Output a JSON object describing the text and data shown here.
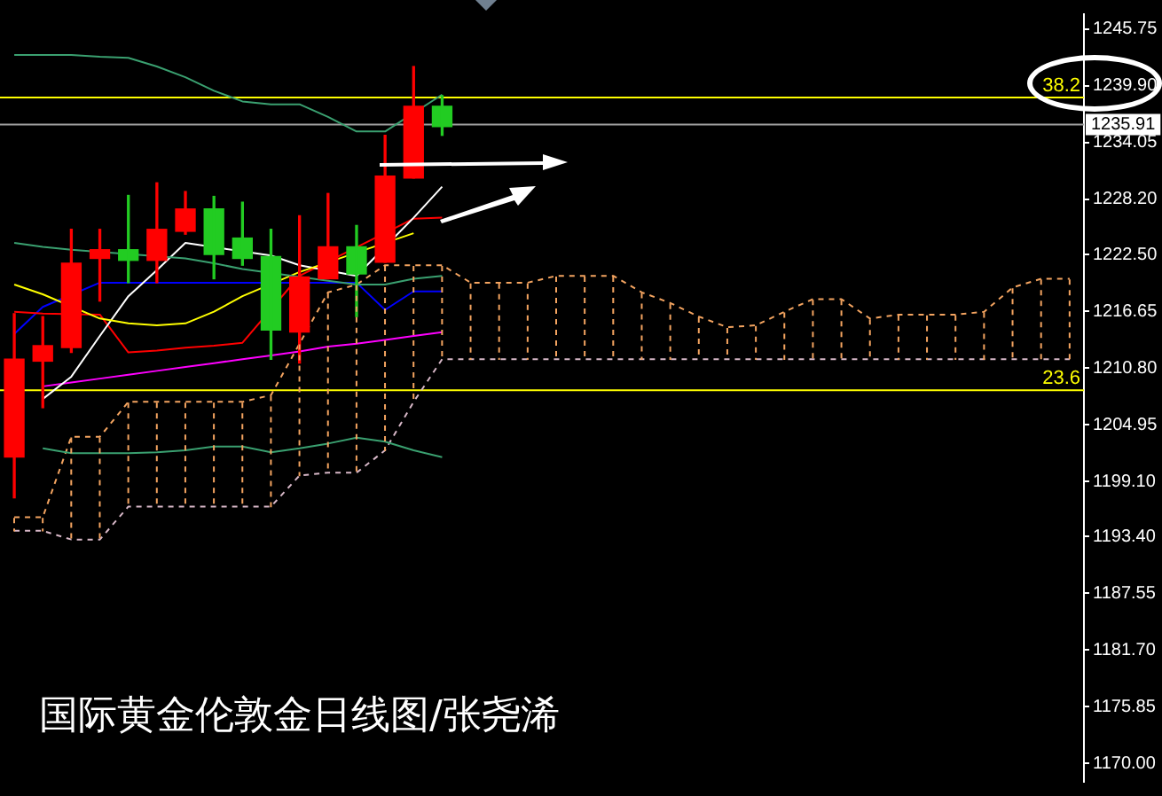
{
  "chart_data": {
    "type": "candlestick",
    "title": "国际黄金伦敦金日线图/张尧浠",
    "categories": [
      null,
      null,
      null,
      null,
      null,
      null,
      null,
      null,
      null,
      null,
      null,
      null,
      null,
      null,
      null,
      null,
      null,
      null,
      null,
      null,
      null,
      null,
      null,
      null,
      null,
      null,
      null,
      null,
      null,
      null,
      null,
      null,
      null,
      null,
      null,
      null,
      null,
      null
    ],
    "ohlc": [
      [
        1201.6,
        1216.4,
        1197.4,
        1211.7
      ],
      [
        1211.5,
        1216.1,
        1206.7,
        1213.1
      ],
      [
        1212.9,
        1225.1,
        1212.4,
        1221.6
      ],
      [
        1222.1,
        1225.1,
        1217.7,
        1223.0
      ],
      [
        1223.0,
        1228.6,
        1219.6,
        1221.9
      ],
      [
        1221.9,
        1229.9,
        1219.6,
        1225.1
      ],
      [
        1224.9,
        1229.0,
        1224.6,
        1227.2
      ],
      [
        1227.2,
        1228.5,
        1220.0,
        1222.5
      ],
      [
        1224.2,
        1227.9,
        1221.4,
        1222.1
      ],
      [
        1222.3,
        1225.1,
        1211.7,
        1214.7
      ],
      [
        1214.5,
        1226.5,
        1211.3,
        1220.2
      ],
      [
        1220.0,
        1228.8,
        1220.0,
        1223.3
      ],
      [
        1223.3,
        1225.5,
        1216.1,
        1220.5
      ],
      [
        1221.7,
        1234.8,
        1221.7,
        1230.6
      ],
      [
        1230.4,
        1241.9,
        1230.4,
        1237.8
      ],
      [
        1237.8,
        1238.9,
        1234.8,
        1235.7
      ],
      null,
      null,
      null,
      null,
      null,
      null,
      null,
      null,
      null,
      null,
      null,
      null,
      null,
      null,
      null,
      null,
      null,
      null,
      null,
      null,
      null,
      null
    ],
    "colors": [
      "#ff0000",
      "#ff0000",
      "#ff0000",
      "#ff0000",
      "#22cc22",
      "#ff0000",
      "#ff0000",
      "#22cc22",
      "#22cc22",
      "#22cc22",
      "#ff0000",
      "#ff0000",
      "#22cc22",
      "#ff0000",
      "#ff0000",
      "#22cc22",
      null,
      null,
      null,
      null,
      null,
      null,
      null,
      null,
      null,
      null,
      null,
      null,
      null,
      null,
      null,
      null,
      null,
      null,
      null,
      null,
      null,
      null
    ],
    "series": [
      {
        "type": "line",
        "color": "#3aa070",
        "values": [
          1243.1,
          1243.1,
          1243.1,
          1242.9,
          1242.8,
          1241.9,
          1240.8,
          1239.4,
          1238.3,
          1238.0,
          1238.0,
          1236.7,
          1235.2,
          1235.2,
          null,
          1239.0,
          null,
          null,
          null,
          null,
          null,
          null,
          null,
          null,
          null,
          null,
          null,
          null,
          null,
          null,
          null,
          null,
          null,
          null,
          null,
          null,
          null,
          null
        ]
      },
      {
        "type": "line",
        "color": "#3aa070",
        "values": [
          1223.7,
          1223.3,
          1223.0,
          null,
          null,
          null,
          1222.1,
          1221.6,
          1221.0,
          null,
          null,
          1219.8,
          1219.4,
          1219.4,
          1220.0,
          1220.3,
          null,
          null,
          null,
          null,
          null,
          null,
          null,
          null,
          null,
          null,
          null,
          null,
          null,
          null,
          null,
          null,
          null,
          null,
          null,
          null,
          null,
          null
        ]
      },
      {
        "type": "line",
        "color": "#3aa070",
        "values": [
          null,
          1202.5,
          1202.0,
          1202.0,
          1202.0,
          1202.1,
          1202.3,
          1202.7,
          1202.7,
          1202.1,
          1202.5,
          1203.0,
          1203.6,
          1203.2,
          1202.3,
          1201.6,
          null,
          null,
          null,
          null,
          null,
          null,
          null,
          null,
          null,
          null,
          null,
          null,
          null,
          null,
          null,
          null,
          null,
          null,
          null,
          null,
          null,
          null
        ]
      },
      {
        "type": "line",
        "color": "#ffff00",
        "values": [
          1219.4,
          1218.4,
          null,
          1215.9,
          1215.4,
          1215.2,
          1215.4,
          1216.6,
          1218.2,
          null,
          1220.7,
          null,
          null,
          null,
          1224.7,
          null,
          null,
          null,
          null,
          null,
          null,
          null,
          null,
          null,
          null,
          null,
          null,
          null,
          null,
          null,
          null,
          null,
          null,
          null,
          null,
          null,
          null,
          null
        ]
      },
      {
        "type": "line",
        "color": "#ffffff",
        "values": [
          null,
          1207.6,
          1209.9,
          1214.1,
          1218.2,
          1220.9,
          1223.7,
          null,
          null,
          1222.4,
          1221.4,
          null,
          1220.3,
          null,
          1226.3,
          1229.5,
          null,
          null,
          null,
          null,
          null,
          null,
          null,
          null,
          null,
          null,
          null,
          null,
          null,
          null,
          null,
          null,
          null,
          null,
          null,
          null,
          null,
          null
        ]
      },
      {
        "type": "line",
        "color": "#ff0000",
        "values": [
          1216.6,
          1216.4,
          null,
          1216.3,
          1212.4,
          1212.6,
          1212.9,
          1213.1,
          1213.4,
          null,
          1220.3,
          null,
          null,
          null,
          1226.2,
          1226.3,
          null,
          null,
          null,
          null,
          null,
          null,
          null,
          null,
          null,
          null,
          null,
          null,
          null,
          null,
          null,
          null,
          null,
          null,
          null,
          null,
          null,
          null
        ]
      },
      {
        "type": "line",
        "color": "#0000ff",
        "values": [
          1214.3,
          1217.1,
          null,
          1219.6,
          1219.6,
          1219.6,
          1219.6,
          1219.6,
          1219.6,
          null,
          null,
          1219.6,
          1219.6,
          1216.8,
          1218.7,
          1218.7,
          null,
          null,
          null,
          null,
          null,
          null,
          null,
          null,
          null,
          null,
          null,
          null,
          null,
          null,
          null,
          null,
          null,
          null,
          null,
          null,
          null,
          null
        ]
      },
      {
        "type": "line",
        "color": "#ff00ff",
        "values": [
          null,
          1208.9,
          1209.3,
          1209.7,
          1210.1,
          1210.5,
          1210.9,
          1211.3,
          1211.7,
          1212.1,
          1212.5,
          1213.0,
          1213.3,
          1213.7,
          1214.1,
          1214.5,
          null,
          null,
          null,
          null,
          null,
          null,
          null,
          null,
          null,
          null,
          null,
          null,
          null,
          null,
          null,
          null,
          null,
          null,
          null,
          null,
          null,
          null
        ]
      },
      {
        "type": "line",
        "color": "#f4a460",
        "line_style": "dashed",
        "values": [
          1195.4,
          1195.4,
          1203.7,
          1203.7,
          1207.3,
          1207.3,
          1207.3,
          1207.3,
          1207.3,
          1208.0,
          1213.3,
          1218.6,
          1219.4,
          1221.4,
          1221.4,
          1221.4,
          1219.6,
          1219.6,
          1219.6,
          1220.3,
          1220.3,
          1220.3,
          1218.6,
          1217.5,
          1216.1,
          1215.0,
          1215.2,
          1216.6,
          1217.9,
          1217.9,
          1215.9,
          1216.3,
          1216.3,
          1216.3,
          1216.6,
          1219.1,
          1220.0,
          1220.0
        ]
      },
      {
        "type": "line",
        "color": "#d8b8c8",
        "line_style": "dashed",
        "values": [
          1194.0,
          1194.0,
          1193.1,
          1193.1,
          1196.5,
          1196.5,
          1196.5,
          1196.5,
          1196.5,
          1196.5,
          1199.7,
          1200.0,
          1200.0,
          1202.3,
          1207.3,
          1211.7,
          1211.7,
          1211.7,
          1211.7,
          1211.7,
          1211.7,
          1211.7,
          1211.7,
          1211.7,
          1211.7,
          1211.7,
          1211.7,
          1211.7,
          1211.7,
          1211.7,
          1211.7,
          1211.7,
          1211.7,
          1211.7,
          1211.7,
          1211.7,
          1211.7,
          1211.7
        ]
      }
    ],
    "annotations": [
      {
        "text": "38.2",
        "y": 1238.7
      },
      {
        "text": "23.6",
        "y": 1208.5
      }
    ],
    "ref_lines": [
      {
        "axis": "y",
        "value": 1238.7,
        "color": "#ffff00"
      },
      {
        "axis": "y",
        "value": 1208.5,
        "color": "#ffff00"
      },
      {
        "axis": "y",
        "value": 1235.91,
        "label": "1235.91",
        "color": "#a0a0a0"
      }
    ],
    "ylim": [
      1168.1,
      1247.3
    ],
    "yticks": [
      {
        "value": 1245.75,
        "label": "1245.75"
      },
      {
        "value": 1239.9,
        "label": "1239.90"
      },
      {
        "value": 1234.05,
        "label": "1234.05"
      },
      {
        "value": 1228.2,
        "label": "1228.20"
      },
      {
        "value": 1222.5,
        "label": "1222.50"
      },
      {
        "value": 1216.65,
        "label": "1216.65"
      },
      {
        "value": 1210.8,
        "label": "1210.80"
      },
      {
        "value": 1204.95,
        "label": "1204.95"
      },
      {
        "value": 1199.1,
        "label": "1199.10"
      },
      {
        "value": 1193.4,
        "label": "1193.40"
      },
      {
        "value": 1187.55,
        "label": "1187.55"
      },
      {
        "value": 1181.7,
        "label": "1181.70"
      },
      {
        "value": 1175.85,
        "label": "1175.85"
      },
      {
        "value": 1170.0,
        "label": "1170.00"
      }
    ],
    "tick_labels": "y",
    "grid": false,
    "legend": false,
    "marker": "none"
  }
}
